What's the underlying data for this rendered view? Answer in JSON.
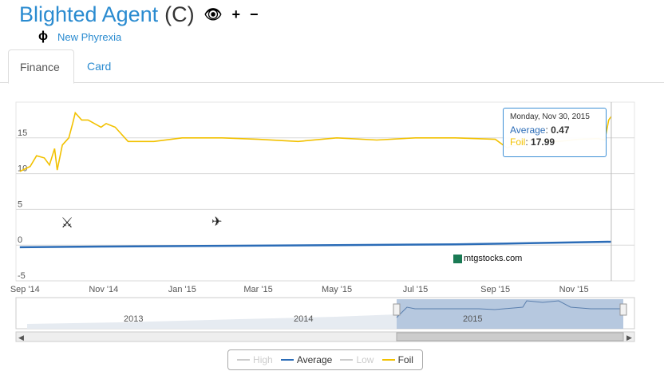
{
  "card": {
    "name": "Blighted Agent",
    "rarity": "(C)",
    "set_name": "New Phyrexia"
  },
  "tabs": [
    {
      "label": "Finance",
      "active": true
    },
    {
      "label": "Card",
      "active": false
    }
  ],
  "tooltip": {
    "date": "Monday, Nov 30, 2015",
    "average_label": "Average",
    "average_value": "0.47",
    "foil_label": "Foil",
    "foil_value": "17.99"
  },
  "navigator": {
    "years": [
      "2013",
      "2014",
      "2015"
    ]
  },
  "watermark": "mtgstocks.com",
  "colors": {
    "accent": "#2a8bd0",
    "foil": "#f2c100",
    "average": "#2b6cb7",
    "high": "#bbbbbb",
    "low": "#bbbbbb"
  },
  "chart_data": {
    "type": "line",
    "x_ticks": [
      "Sep '14",
      "Nov '14",
      "Jan '15",
      "Mar '15",
      "May '15",
      "Jul '15",
      "Sep '15",
      "Nov '15"
    ],
    "y_ticks": [
      "-5",
      "0",
      "5",
      "10",
      "15"
    ],
    "ylim": [
      -5,
      20
    ],
    "series": [
      {
        "name": "Foil",
        "dates": [
          "2014-08-28",
          "2014-09-05",
          "2014-09-10",
          "2014-09-16",
          "2014-09-20",
          "2014-09-24",
          "2014-09-26",
          "2014-09-30",
          "2014-10-05",
          "2014-10-08",
          "2014-10-10",
          "2014-10-15",
          "2014-10-20",
          "2014-10-25",
          "2014-10-30",
          "2014-11-03",
          "2014-11-10",
          "2014-11-20",
          "2014-12-01",
          "2014-12-10",
          "2015-01-01",
          "2015-02-01",
          "2015-03-01",
          "2015-04-01",
          "2015-05-01",
          "2015-06-01",
          "2015-07-01",
          "2015-08-01",
          "2015-09-01",
          "2015-09-10",
          "2015-10-01",
          "2015-10-20",
          "2015-11-05",
          "2015-11-20",
          "2015-11-25",
          "2015-11-28",
          "2015-11-30"
        ],
        "values": [
          10.3,
          11.0,
          12.5,
          12.2,
          11.2,
          13.5,
          10.5,
          14.0,
          15.0,
          17.0,
          18.5,
          17.5,
          17.5,
          17.0,
          16.5,
          17.0,
          16.5,
          14.5,
          14.5,
          14.5,
          15.0,
          15.0,
          14.8,
          14.5,
          15.0,
          14.7,
          15.0,
          15.0,
          14.8,
          13.6,
          14.8,
          14.5,
          14.8,
          14.9,
          14.7,
          17.5,
          17.99
        ]
      },
      {
        "name": "Average",
        "dates": [
          "2014-08-28",
          "2014-11-01",
          "2015-02-01",
          "2015-05-01",
          "2015-08-01",
          "2015-11-30"
        ],
        "values": [
          -0.3,
          -0.2,
          -0.1,
          0.0,
          0.1,
          0.47
        ]
      },
      {
        "name": "High",
        "dates": [],
        "values": []
      },
      {
        "name": "Low",
        "dates": [],
        "values": []
      }
    ]
  },
  "legend": [
    {
      "label": "High",
      "active": false
    },
    {
      "label": "Average",
      "active": true
    },
    {
      "label": "Low",
      "active": false
    },
    {
      "label": "Foil",
      "active": true
    }
  ]
}
